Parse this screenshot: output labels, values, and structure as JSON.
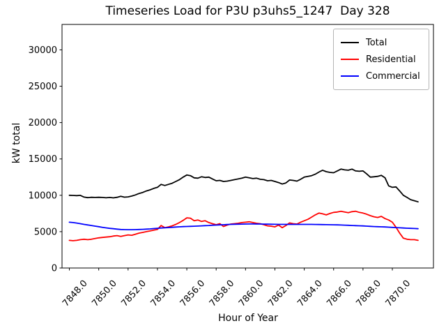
{
  "chart_data": {
    "type": "line",
    "title": "Timeseries Load for P3U p3uhs5_1247  Day 328",
    "xlabel": "Hour of Year",
    "ylabel": "kW total",
    "xlim": [
      7847.5,
      7872.8
    ],
    "ylim": [
      0,
      33500
    ],
    "grid": false,
    "legend_position": "upper right",
    "xticks": [
      7848,
      7850,
      7852,
      7854,
      7856,
      7858,
      7860,
      7862,
      7864,
      7866,
      7868,
      7870
    ],
    "xtick_labels": [
      "7848.0",
      "7850.0",
      "7852.0",
      "7854.0",
      "7856.0",
      "7858.0",
      "7860.0",
      "7862.0",
      "7864.0",
      "7866.0",
      "7868.0",
      "7870.0"
    ],
    "yticks": [
      0,
      5000,
      10000,
      15000,
      20000,
      25000,
      30000
    ],
    "ytick_labels": [
      "0",
      "5000",
      "10000",
      "15000",
      "20000",
      "25000",
      "30000"
    ],
    "x_start": 7848.0,
    "x_step": 0.25,
    "series": [
      {
        "name": "Total",
        "color": "#000000",
        "values": [
          10000,
          9980,
          9950,
          9990,
          9750,
          9680,
          9720,
          9700,
          9720,
          9700,
          9660,
          9700,
          9650,
          9720,
          9860,
          9740,
          9780,
          9900,
          10050,
          10250,
          10400,
          10600,
          10750,
          10950,
          11100,
          11500,
          11350,
          11500,
          11650,
          11900,
          12150,
          12500,
          12800,
          12700,
          12400,
          12350,
          12550,
          12450,
          12500,
          12250,
          12000,
          12050,
          11900,
          11950,
          12050,
          12150,
          12250,
          12350,
          12500,
          12400,
          12300,
          12350,
          12200,
          12150,
          12000,
          12050,
          11900,
          11750,
          11550,
          11700,
          12100,
          12050,
          11950,
          12200,
          12500,
          12600,
          12700,
          12900,
          13200,
          13450,
          13250,
          13150,
          13100,
          13350,
          13600,
          13500,
          13450,
          13600,
          13350,
          13300,
          13350,
          12950,
          12500,
          12550,
          12600,
          12750,
          12400,
          11300,
          11100,
          11150,
          10600,
          10000,
          9700,
          9400,
          9250,
          9100
        ]
      },
      {
        "name": "Residential",
        "color": "#ff0000",
        "values": [
          3800,
          3750,
          3800,
          3900,
          3950,
          3900,
          3950,
          4050,
          4150,
          4200,
          4250,
          4300,
          4400,
          4450,
          4350,
          4450,
          4550,
          4500,
          4650,
          4800,
          4900,
          5000,
          5100,
          5200,
          5300,
          5850,
          5550,
          5650,
          5800,
          6000,
          6250,
          6550,
          6900,
          6850,
          6500,
          6600,
          6400,
          6500,
          6250,
          6100,
          5950,
          6100,
          5700,
          5900,
          6050,
          6100,
          6150,
          6250,
          6300,
          6350,
          6250,
          6150,
          6100,
          5950,
          5800,
          5750,
          5650,
          5900,
          5550,
          5850,
          6200,
          6100,
          6050,
          6300,
          6500,
          6700,
          7000,
          7300,
          7550,
          7450,
          7300,
          7500,
          7650,
          7700,
          7800,
          7700,
          7600,
          7750,
          7800,
          7650,
          7550,
          7400,
          7200,
          7050,
          6950,
          7100,
          6800,
          6600,
          6300,
          5600,
          4800,
          4100,
          3950,
          3900,
          3900,
          3800
        ]
      },
      {
        "name": "Commercial",
        "color": "#0000ff",
        "values": [
          6300,
          6250,
          6180,
          6100,
          6000,
          5920,
          5850,
          5760,
          5680,
          5600,
          5520,
          5450,
          5400,
          5350,
          5300,
          5280,
          5270,
          5270,
          5280,
          5300,
          5320,
          5350,
          5380,
          5420,
          5460,
          5500,
          5530,
          5560,
          5600,
          5630,
          5660,
          5690,
          5710,
          5730,
          5750,
          5770,
          5800,
          5830,
          5850,
          5880,
          5900,
          5930,
          5950,
          5980,
          6000,
          6020,
          6030,
          6040,
          6050,
          6060,
          6060,
          6050,
          6050,
          6040,
          6030,
          6020,
          6010,
          6000,
          6000,
          6000,
          6000,
          6000,
          6000,
          6000,
          6000,
          6000,
          6000,
          5990,
          5980,
          5970,
          5960,
          5950,
          5940,
          5930,
          5910,
          5890,
          5870,
          5850,
          5830,
          5810,
          5790,
          5760,
          5730,
          5700,
          5680,
          5660,
          5640,
          5620,
          5590,
          5560,
          5530,
          5500,
          5470,
          5450,
          5430,
          5400
        ]
      }
    ]
  }
}
